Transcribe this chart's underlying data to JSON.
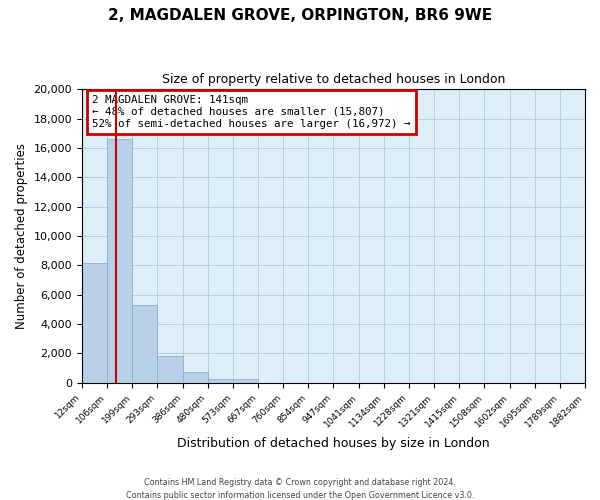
{
  "title": "2, MAGDALEN GROVE, ORPINGTON, BR6 9WE",
  "subtitle": "Size of property relative to detached houses in London",
  "xlabel": "Distribution of detached houses by size in London",
  "ylabel": "Number of detached properties",
  "bar_values": [
    8200,
    16600,
    5300,
    1850,
    750,
    280,
    280,
    0,
    0,
    0,
    0,
    0,
    0,
    0,
    0,
    0,
    0,
    0,
    0,
    0
  ],
  "bin_labels": [
    "12sqm",
    "106sqm",
    "199sqm",
    "293sqm",
    "386sqm",
    "480sqm",
    "573sqm",
    "667sqm",
    "760sqm",
    "854sqm",
    "947sqm",
    "1041sqm",
    "1134sqm",
    "1228sqm",
    "1321sqm",
    "1415sqm",
    "1508sqm",
    "1602sqm",
    "1695sqm",
    "1789sqm",
    "1882sqm"
  ],
  "bar_color": "#b8d0e8",
  "bar_edgecolor": "#8ab0d0",
  "vline_x": 1.35,
  "vline_color": "#cc0000",
  "ylim": [
    0,
    20000
  ],
  "yticks": [
    0,
    2000,
    4000,
    6000,
    8000,
    10000,
    12000,
    14000,
    16000,
    18000,
    20000
  ],
  "annotation_title": "2 MAGDALEN GROVE: 141sqm",
  "annotation_line1": "← 48% of detached houses are smaller (15,807)",
  "annotation_line2": "52% of semi-detached houses are larger (16,972) →",
  "annotation_box_color": "#cc0000",
  "footer_line1": "Contains HM Land Registry data © Crown copyright and database right 2024.",
  "footer_line2": "Contains public sector information licensed under the Open Government Licence v3.0.",
  "background_color": "#ffffff",
  "plot_bg_color": "#ddeef8",
  "grid_color": "#b8cfe0"
}
